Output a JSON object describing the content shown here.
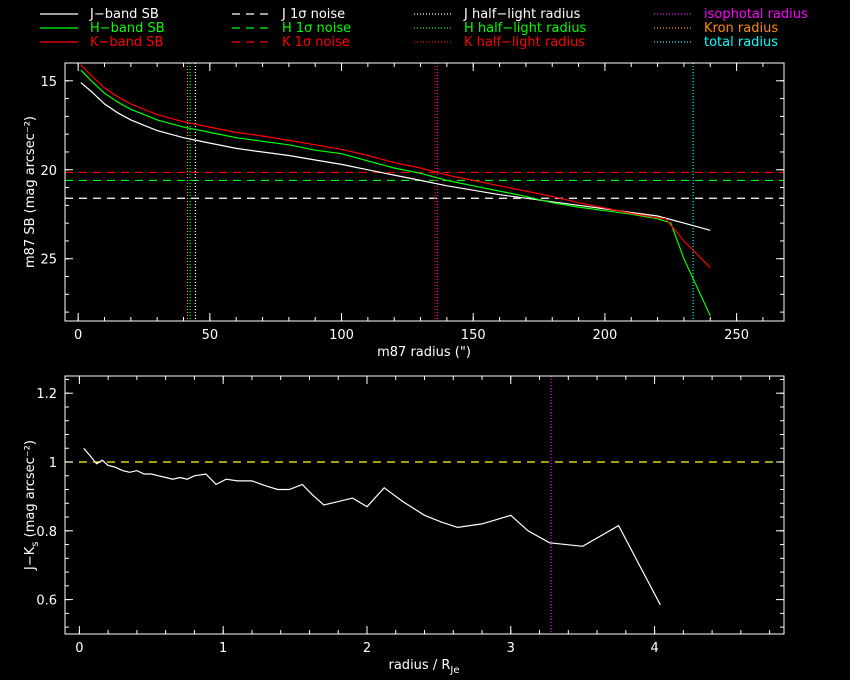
{
  "legend": {
    "columns": [
      [
        {
          "label": "J−band SB",
          "color": "#ffffff",
          "dash": "solid"
        },
        {
          "label": "H−band SB",
          "color": "#00ff00",
          "dash": "solid"
        },
        {
          "label": "K−band SB",
          "color": "#ff0000",
          "dash": "solid"
        }
      ],
      [
        {
          "label": "J 1σ noise",
          "color": "#ffffff",
          "dash": "dashed"
        },
        {
          "label": "H 1σ noise",
          "color": "#00ff00",
          "dash": "dashed"
        },
        {
          "label": "K 1σ noise",
          "color": "#ff0000",
          "dash": "dashed"
        }
      ],
      [
        {
          "label": "J half−light radius",
          "color": "#ffffff",
          "dash": "dotted"
        },
        {
          "label": "H half−light radius",
          "color": "#00ff00",
          "dash": "dotted"
        },
        {
          "label": "K half−light radius",
          "color": "#ff0000",
          "dash": "dotted"
        }
      ],
      [
        {
          "label": "isophotal radius",
          "color": "#ff00ff",
          "dash": "dotted"
        },
        {
          "label": "Kron radius",
          "color": "#ff8c00",
          "dash": "dotted"
        },
        {
          "label": "total radius",
          "color": "#00ffff",
          "dash": "dotted"
        }
      ]
    ]
  },
  "chart_data": [
    {
      "type": "line",
      "xlabel": "m87 radius (\")",
      "ylabel": "m87 SB (mag arcsec⁻²)",
      "xlim": [
        -5,
        268
      ],
      "ylim": [
        14,
        28.5
      ],
      "y_inverted": true,
      "xticks": [
        0,
        50,
        100,
        150,
        200,
        250
      ],
      "yticks": [
        15,
        20,
        25
      ],
      "series": [
        {
          "name": "J−band SB",
          "color": "#ffffff",
          "x": [
            1,
            5,
            10,
            15,
            20,
            25,
            30,
            40,
            50,
            60,
            70,
            80,
            90,
            100,
            110,
            120,
            130,
            140,
            150,
            160,
            170,
            180,
            190,
            200,
            210,
            220,
            230,
            240
          ],
          "y": [
            15.1,
            15.6,
            16.3,
            16.8,
            17.2,
            17.5,
            17.8,
            18.2,
            18.5,
            18.8,
            19.0,
            19.2,
            19.45,
            19.7,
            20.0,
            20.3,
            20.6,
            20.9,
            21.15,
            21.4,
            21.6,
            21.8,
            22.0,
            22.2,
            22.4,
            22.6,
            23.0,
            23.4
          ]
        },
        {
          "name": "H−band SB",
          "color": "#00ff00",
          "x": [
            1,
            5,
            10,
            15,
            20,
            25,
            30,
            40,
            50,
            60,
            70,
            80,
            90,
            100,
            110,
            120,
            130,
            140,
            150,
            160,
            170,
            180,
            190,
            200,
            210,
            220,
            225,
            230,
            240
          ],
          "y": [
            14.4,
            15.0,
            15.7,
            16.2,
            16.6,
            16.9,
            17.2,
            17.6,
            17.9,
            18.2,
            18.4,
            18.6,
            18.9,
            19.1,
            19.5,
            19.9,
            20.2,
            20.6,
            20.9,
            21.2,
            21.5,
            21.85,
            22.1,
            22.3,
            22.5,
            22.75,
            23.0,
            25.0,
            28.2
          ]
        },
        {
          "name": "K−band SB",
          "color": "#ff0000",
          "x": [
            1,
            5,
            10,
            15,
            20,
            25,
            30,
            40,
            50,
            60,
            70,
            80,
            90,
            100,
            110,
            120,
            130,
            140,
            150,
            160,
            170,
            180,
            190,
            200,
            210,
            220,
            223,
            230,
            240
          ],
          "y": [
            14.1,
            14.7,
            15.4,
            15.9,
            16.3,
            16.6,
            16.9,
            17.3,
            17.6,
            17.9,
            18.1,
            18.35,
            18.6,
            18.85,
            19.2,
            19.6,
            19.9,
            20.3,
            20.6,
            20.9,
            21.2,
            21.5,
            21.85,
            22.15,
            22.45,
            22.7,
            22.75,
            24.0,
            25.5
          ]
        }
      ],
      "hlines": [
        {
          "name": "J 1σ noise",
          "y": 21.6,
          "color": "#ffffff"
        },
        {
          "name": "H 1σ noise",
          "y": 20.6,
          "color": "#00ff00"
        },
        {
          "name": "K 1σ noise",
          "y": 20.15,
          "color": "#ff0000"
        }
      ],
      "vlines": [
        {
          "name": "Kron radius",
          "x": 41.5,
          "color": "#ff8c00"
        },
        {
          "name": "H half−light radius",
          "x": 42.5,
          "color": "#00ff00"
        },
        {
          "name": "J half−light radius",
          "x": 44.5,
          "color": "#ffffff"
        },
        {
          "name": "K half−light radius",
          "x": 135.5,
          "color": "#ff0000"
        },
        {
          "name": "isophotal radius",
          "x": 136.5,
          "color": "#ff00ff"
        },
        {
          "name": "total radius",
          "x": 233.5,
          "color": "#00ffff"
        }
      ]
    },
    {
      "type": "line",
      "xlabel": "radius / R",
      "xlabel_sub": "Je",
      "ylabel": "J−K",
      "ylabel_sub": "s",
      "ylabel_unit": " (mag arcsec⁻²)",
      "xlim": [
        -0.1,
        4.9
      ],
      "ylim": [
        0.5,
        1.25
      ],
      "xticks": [
        0,
        1,
        2,
        3,
        4
      ],
      "yticks": [
        0.6,
        0.8,
        1,
        1.2
      ],
      "ytick_labels": [
        "0.6",
        "0.8",
        "1",
        "1.2"
      ],
      "series": [
        {
          "name": "J−K",
          "color": "#ffffff",
          "x": [
            0.03,
            0.08,
            0.12,
            0.16,
            0.2,
            0.25,
            0.3,
            0.35,
            0.4,
            0.45,
            0.5,
            0.55,
            0.6,
            0.65,
            0.7,
            0.75,
            0.8,
            0.88,
            0.95,
            1.02,
            1.1,
            1.2,
            1.3,
            1.38,
            1.46,
            1.55,
            1.62,
            1.7,
            1.8,
            1.9,
            2.0,
            2.12,
            2.25,
            2.4,
            2.52,
            2.63,
            2.8,
            3.0,
            3.12,
            3.27,
            3.5,
            3.75,
            4.04
          ],
          "y": [
            1.04,
            1.015,
            0.995,
            1.005,
            0.99,
            0.985,
            0.975,
            0.97,
            0.975,
            0.965,
            0.965,
            0.96,
            0.955,
            0.95,
            0.955,
            0.95,
            0.96,
            0.965,
            0.935,
            0.95,
            0.945,
            0.945,
            0.93,
            0.92,
            0.92,
            0.935,
            0.905,
            0.875,
            0.885,
            0.895,
            0.87,
            0.925,
            0.885,
            0.845,
            0.825,
            0.81,
            0.82,
            0.845,
            0.8,
            0.765,
            0.755,
            0.815,
            0.585
          ]
        }
      ],
      "hlines": [
        {
          "name": "reference",
          "y": 1.0,
          "color": "#ffff00"
        }
      ],
      "vlines": [
        {
          "name": "isophotal radius",
          "x": 3.28,
          "color": "#ff00ff"
        }
      ]
    }
  ]
}
